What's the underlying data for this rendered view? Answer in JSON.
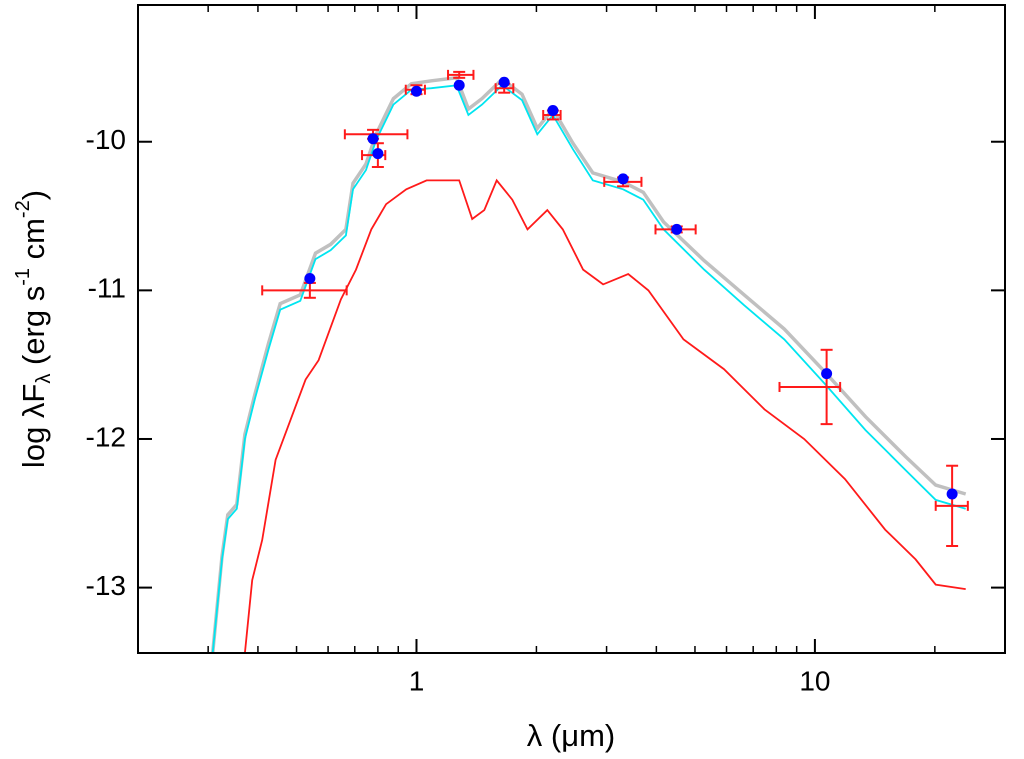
{
  "chart_data": {
    "type": "scatter",
    "xlabel": "λ (μm)",
    "ylabel_parts": [
      "log λF",
      "λ",
      " (erg s",
      "-1",
      " cm",
      "-2",
      ")"
    ],
    "xlog": true,
    "xlim": [
      0.2,
      30
    ],
    "ylim": [
      -13.44,
      -9.08
    ],
    "xticks": [
      1,
      10
    ],
    "xminor_ticks": [
      0.2,
      0.3,
      0.4,
      0.5,
      0.6,
      0.7,
      0.8,
      0.9,
      2,
      3,
      4,
      5,
      6,
      7,
      8,
      9,
      20,
      30
    ],
    "yticks": [
      -10,
      -11,
      -12,
      -13
    ],
    "curves": [
      {
        "color": "#c0c0c0",
        "x": [
          0.308,
          0.325,
          0.336,
          0.354,
          0.371,
          0.393,
          0.425,
          0.455,
          0.511,
          0.558,
          0.609,
          0.665,
          0.693,
          0.747,
          0.792,
          0.875,
          0.971,
          1.09,
          1.26,
          1.35,
          1.46,
          1.64,
          1.84,
          2.01,
          2.2,
          2.47,
          2.77,
          3.3,
          3.71,
          4.17,
          5.27,
          6.64,
          8.38,
          10.6,
          13.4,
          16.9,
          20.1,
          23.9
        ],
        "y": [
          -13.44,
          -12.79,
          -12.51,
          -12.44,
          -11.97,
          -11.7,
          -11.36,
          -11.09,
          -11.03,
          -10.75,
          -10.69,
          -10.59,
          -10.28,
          -10.15,
          -9.95,
          -9.71,
          -9.61,
          -9.59,
          -9.57,
          -9.78,
          -9.71,
          -9.58,
          -9.68,
          -9.91,
          -9.78,
          -10.01,
          -10.21,
          -10.27,
          -10.34,
          -10.54,
          -10.8,
          -11.03,
          -11.26,
          -11.55,
          -11.85,
          -12.12,
          -12.31,
          -12.37
        ]
      },
      {
        "color": "#00e5f0",
        "x": [
          0.308,
          0.325,
          0.336,
          0.354,
          0.371,
          0.393,
          0.425,
          0.455,
          0.511,
          0.558,
          0.609,
          0.665,
          0.693,
          0.747,
          0.792,
          0.875,
          0.971,
          1.09,
          1.26,
          1.35,
          1.46,
          1.64,
          1.84,
          2.01,
          2.2,
          2.47,
          2.77,
          3.3,
          3.71,
          4.17,
          5.27,
          6.64,
          8.38,
          10.6,
          13.4,
          16.9,
          20.1,
          23.9
        ],
        "y": [
          -13.44,
          -12.81,
          -12.54,
          -12.47,
          -12.0,
          -11.73,
          -11.4,
          -11.13,
          -11.07,
          -10.79,
          -10.73,
          -10.63,
          -10.32,
          -10.19,
          -9.99,
          -9.75,
          -9.65,
          -9.64,
          -9.62,
          -9.82,
          -9.75,
          -9.62,
          -9.72,
          -9.95,
          -9.82,
          -10.05,
          -10.26,
          -10.32,
          -10.39,
          -10.59,
          -10.86,
          -11.1,
          -11.33,
          -11.63,
          -11.94,
          -12.21,
          -12.41,
          -12.47
        ]
      },
      {
        "color": "#ff1a1a",
        "x": [
          0.371,
          0.387,
          0.41,
          0.443,
          0.483,
          0.527,
          0.568,
          0.646,
          0.705,
          0.77,
          0.839,
          0.943,
          1.06,
          1.28,
          1.38,
          1.48,
          1.59,
          1.74,
          1.9,
          2.13,
          2.33,
          2.62,
          2.94,
          3.4,
          3.82,
          4.68,
          5.91,
          7.47,
          9.4,
          11.9,
          15.0,
          17.9,
          20.1,
          23.9
        ],
        "y": [
          -13.44,
          -12.95,
          -12.68,
          -12.14,
          -11.87,
          -11.6,
          -11.47,
          -11.06,
          -10.86,
          -10.59,
          -10.42,
          -10.32,
          -10.26,
          -10.26,
          -10.52,
          -10.46,
          -10.26,
          -10.39,
          -10.59,
          -10.46,
          -10.59,
          -10.86,
          -10.96,
          -10.89,
          -11.0,
          -11.33,
          -11.53,
          -11.8,
          -12.0,
          -12.27,
          -12.61,
          -12.81,
          -12.98,
          -13.01
        ]
      }
    ],
    "observed": {
      "color": "#ff1a1a",
      "x": [
        0.54,
        0.778,
        0.8,
        1.0,
        1.28,
        1.66,
        2.2,
        3.3,
        4.5,
        10.7,
        22.1
      ],
      "xmin": [
        0.41,
        0.661,
        0.73,
        0.94,
        1.2,
        1.58,
        2.08,
        2.96,
        3.98,
        8.15,
        20.1
      ],
      "xmax": [
        0.668,
        0.949,
        0.835,
        1.05,
        1.39,
        1.75,
        2.3,
        3.67,
        5.02,
        11.57,
        24.2
      ],
      "y": [
        -11.0,
        -9.95,
        -10.09,
        -9.65,
        -9.55,
        -9.64,
        -9.82,
        -10.27,
        -10.59,
        -11.65,
        -12.45
      ],
      "yerr": [
        0.05,
        0.03,
        0.08,
        0.03,
        0.02,
        0.03,
        0.03,
        0.03,
        0.02,
        0.25,
        0.27
      ]
    },
    "model_points": {
      "color": "#0000ff",
      "x": [
        0.54,
        0.778,
        0.8,
        1.0,
        1.28,
        1.66,
        2.2,
        3.3,
        4.5,
        10.7,
        22.1
      ],
      "y": [
        -10.92,
        -9.98,
        -10.08,
        -9.66,
        -9.62,
        -9.6,
        -9.79,
        -10.25,
        -10.59,
        -11.56,
        -12.37
      ]
    }
  }
}
